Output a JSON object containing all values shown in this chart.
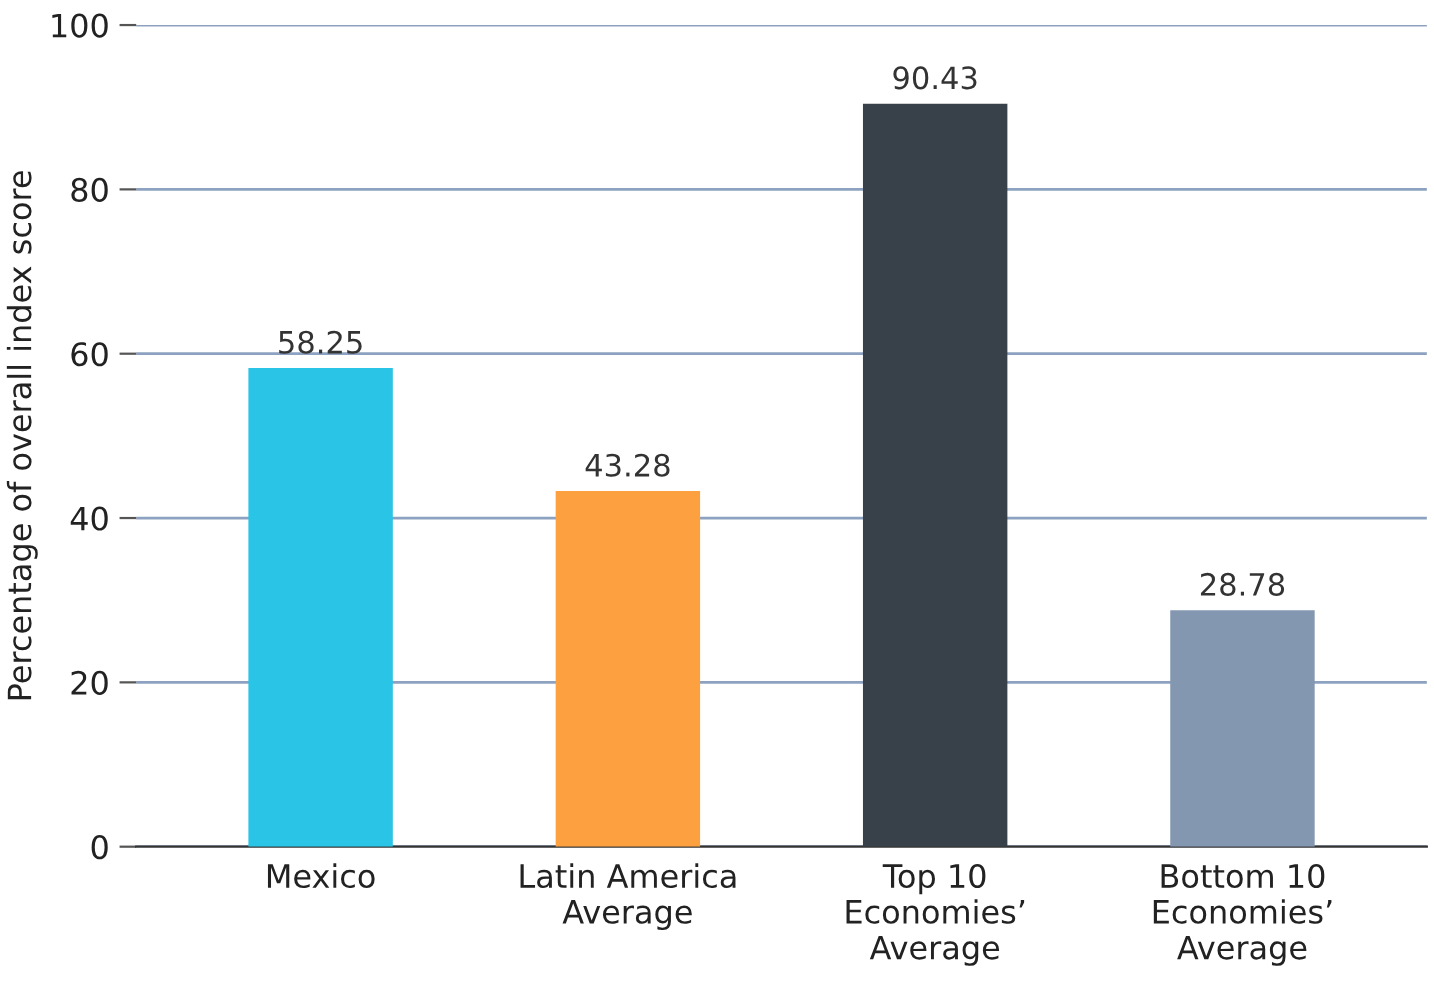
{
  "chart_data": {
    "type": "bar",
    "ylabel": "Percentage of overall index score",
    "categories": [
      "Mexico",
      "Latin America\nAverage",
      "Top 10\nEconomies’\nAverage",
      "Bottom 10\nEconomies’\nAverage"
    ],
    "values": [
      58.25,
      43.28,
      90.43,
      28.78
    ],
    "colors": [
      "#29c4e6",
      "#fca040",
      "#384049",
      "#8497b0"
    ],
    "ylim": [
      0,
      100
    ],
    "yticks": [
      0,
      20,
      40,
      60,
      80,
      100
    ],
    "grid": "y",
    "data_labels": true,
    "legend": false
  }
}
